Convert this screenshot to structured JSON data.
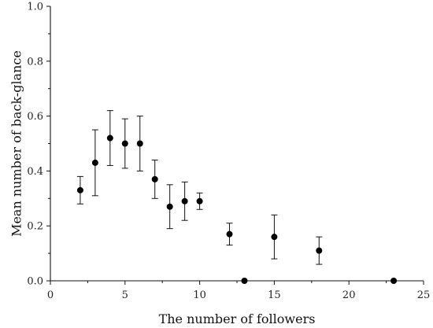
{
  "chart_data": {
    "type": "scatter",
    "xlabel": "The number of followers",
    "ylabel": "Mean number of back-glance",
    "xlim": [
      0,
      25
    ],
    "ylim": [
      0.0,
      1.0
    ],
    "x_ticks": [
      "0",
      "5",
      "10",
      "15",
      "20",
      "25"
    ],
    "y_ticks": [
      "0.0",
      "0.2",
      "0.4",
      "0.6",
      "0.8",
      "1.0"
    ],
    "grid": false,
    "series": [
      {
        "x": [
          2,
          3,
          4,
          5,
          6,
          7,
          8,
          9,
          10,
          12,
          13,
          15,
          18,
          23
        ],
        "y": [
          0.33,
          0.43,
          0.52,
          0.5,
          0.5,
          0.37,
          0.27,
          0.29,
          0.29,
          0.17,
          0.0,
          0.16,
          0.11,
          0.0
        ],
        "err": [
          0.05,
          0.12,
          0.1,
          0.09,
          0.1,
          0.07,
          0.08,
          0.07,
          0.03,
          0.04,
          0.0,
          0.08,
          0.05,
          0.0
        ]
      }
    ],
    "colors": {
      "marker": "#000000",
      "axis": "#111111"
    }
  }
}
